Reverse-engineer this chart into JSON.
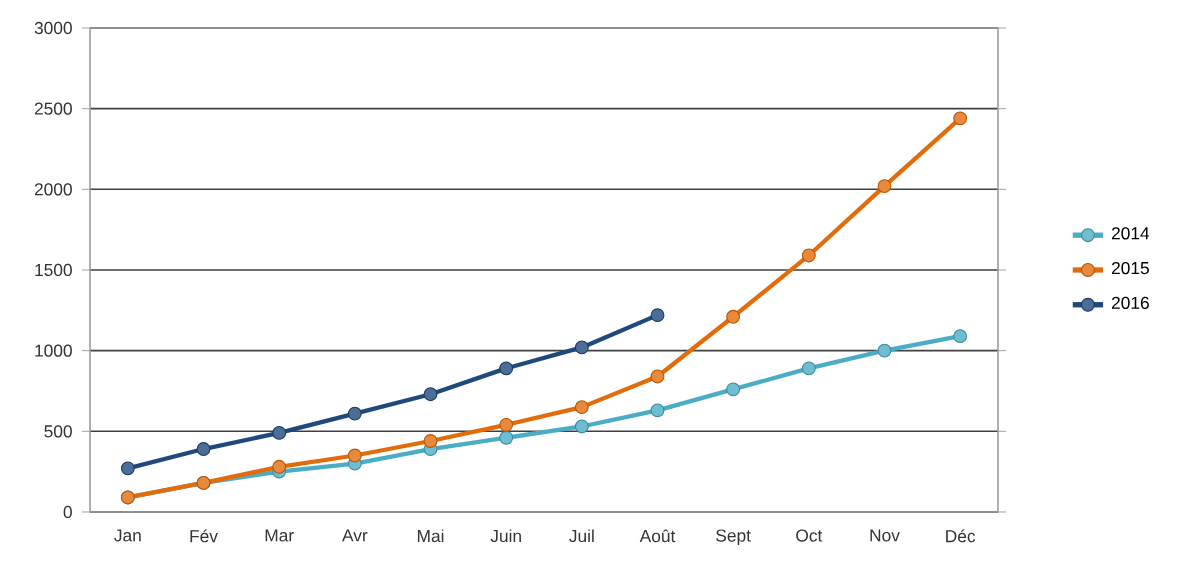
{
  "chart_data": {
    "type": "line",
    "categories": [
      "Jan",
      "Fév",
      "Mar",
      "Avr",
      "Mai",
      "Juin",
      "Juil",
      "Août",
      "Sept",
      "Oct",
      "Nov",
      "Déc"
    ],
    "series": [
      {
        "name": "2014",
        "color": "#4bacc6",
        "values": [
          90,
          180,
          250,
          300,
          390,
          460,
          530,
          630,
          760,
          890,
          1000,
          1090
        ]
      },
      {
        "name": "2015",
        "color": "#e36c0a",
        "values": [
          90,
          180,
          280,
          350,
          440,
          540,
          650,
          840,
          1210,
          1590,
          2020,
          2440
        ]
      },
      {
        "name": "2016",
        "color": "#1f497d",
        "values": [
          270,
          390,
          490,
          610,
          730,
          890,
          1020,
          1220,
          null,
          null,
          null,
          null
        ]
      }
    ],
    "ylim": [
      0,
      3000
    ],
    "yticks": [
      0,
      500,
      1000,
      1500,
      2000,
      2500,
      3000
    ],
    "grid": "y",
    "legend": "right",
    "marker": "circle",
    "line_style": "solid"
  }
}
